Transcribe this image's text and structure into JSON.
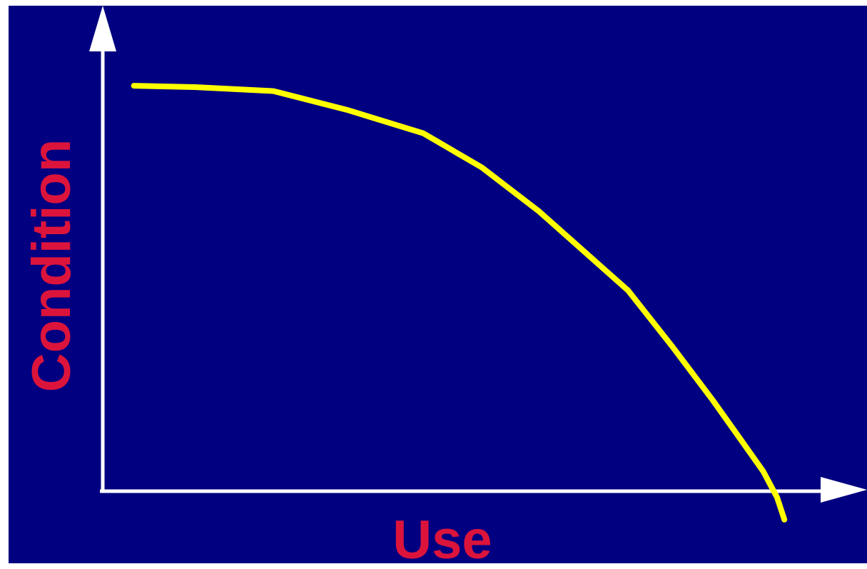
{
  "colors": {
    "background": "#000080",
    "curve": "#ffff00",
    "axis": "#ffffff",
    "axis_label": "#dc143c"
  },
  "chart_data": {
    "type": "line",
    "title": "",
    "xlabel": "Use",
    "ylabel": "Condition",
    "xlim": [
      0,
      100
    ],
    "ylim": [
      0,
      100
    ],
    "grid": false,
    "ticks": false,
    "series": [
      {
        "x": [
          4.3,
          12.7,
          23.6,
          33.7,
          44.3,
          52.4,
          60.3,
          66.1,
          72.6,
          78.7,
          84.3,
          88.4,
          91.3,
          93.2,
          94.2
        ],
        "y": [
          91.3,
          91.0,
          90.1,
          85.9,
          80.6,
          72.9,
          63.0,
          54.6,
          45.2,
          32.6,
          20.5,
          11.1,
          4.4,
          -1.4,
          -6.4
        ]
      }
    ]
  }
}
